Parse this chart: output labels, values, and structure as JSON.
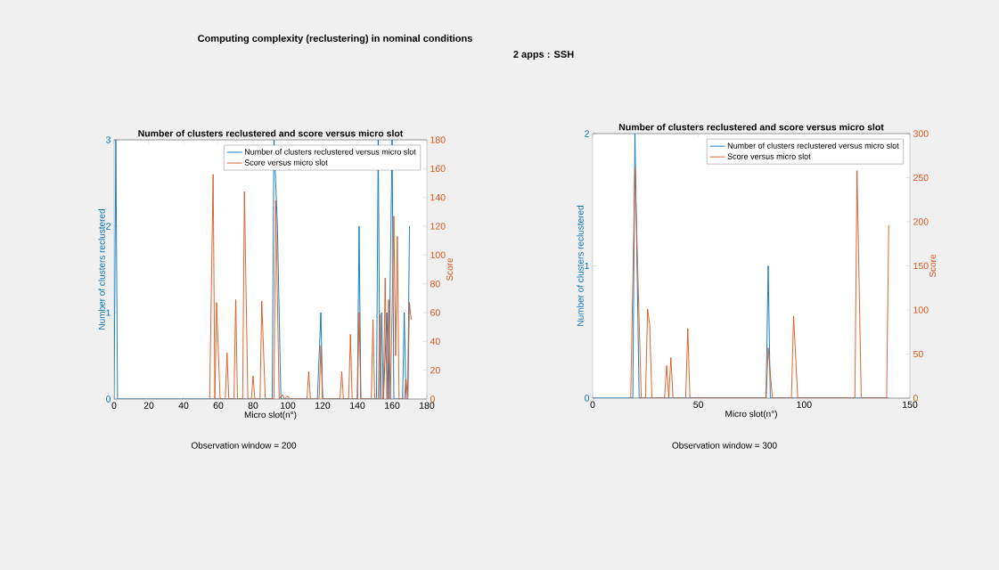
{
  "chart_data": [
    {
      "type": "line",
      "title": "Number of clusters reclustered and score versus micro slot",
      "xlabel": "Micro slot(n°)",
      "ylabel": "Number of clusters reclustered",
      "y2label": "Score",
      "annotations": [
        "Computing complexity (reclustering) in nominal conditions",
        "2 apps : SSH",
        "Observation window = 200"
      ],
      "xlim": [
        0,
        180
      ],
      "xticks": [
        0,
        20,
        40,
        60,
        80,
        100,
        120,
        140,
        160,
        180
      ],
      "ylim": [
        0,
        3
      ],
      "yticks": [
        0,
        1,
        2,
        3
      ],
      "y2lim": [
        0,
        180
      ],
      "y2ticks": [
        0,
        20,
        40,
        60,
        80,
        100,
        120,
        140,
        160,
        180
      ],
      "legend": "top right",
      "series": [
        {
          "name": "Number of clusters reclustered versus micro slot",
          "color": "#0072bd",
          "x": [
            0,
            1,
            2,
            91,
            92,
            94,
            96,
            117,
            119,
            120,
            140,
            141,
            142,
            151,
            152,
            153,
            154,
            155,
            157,
            158,
            160,
            161,
            166,
            167,
            168,
            169,
            170
          ],
          "values": [
            0,
            3,
            0,
            0,
            3,
            2,
            0,
            0,
            1,
            0,
            0,
            2,
            0,
            0,
            3,
            0,
            1,
            0,
            1,
            0,
            3,
            0,
            0,
            1,
            0,
            0,
            2
          ]
        },
        {
          "name": "Score versus micro slot",
          "color": "#d95319",
          "axis": "y2",
          "x": [
            55,
            57,
            58,
            59,
            61,
            64,
            65,
            66,
            69,
            70,
            71,
            74,
            75,
            77,
            79,
            80,
            81,
            84,
            85,
            87,
            92,
            93,
            95,
            97,
            98,
            100,
            101,
            111,
            112,
            113,
            118,
            119,
            120,
            130,
            131,
            132,
            135,
            136,
            137,
            140,
            141,
            142,
            148,
            149,
            150,
            152,
            153,
            154,
            155,
            156,
            157,
            158,
            159,
            161,
            162,
            163,
            164,
            167,
            168,
            169,
            170,
            171
          ],
          "values": [
            0,
            156,
            0,
            67,
            0,
            0,
            32,
            0,
            0,
            69,
            0,
            0,
            144,
            0,
            0,
            16,
            0,
            0,
            68,
            0,
            0,
            138,
            0,
            3,
            0,
            2,
            0,
            0,
            19,
            0,
            0,
            37,
            0,
            0,
            19,
            0,
            0,
            45,
            0,
            0,
            60,
            0,
            0,
            55,
            0,
            0,
            59,
            0,
            0,
            84,
            0,
            69,
            0,
            127,
            30,
            113,
            0,
            0,
            14,
            0,
            67,
            55
          ]
        }
      ]
    },
    {
      "type": "line",
      "title": "Number of clusters reclustered and score versus micro slot",
      "xlabel": "Micro slot(n°)",
      "ylabel": "Number of clusters reclustered",
      "y2label": "Score",
      "annotations": [
        "Observation window = 300"
      ],
      "xlim": [
        0,
        150
      ],
      "xticks": [
        0,
        50,
        100,
        150
      ],
      "ylim": [
        0,
        2
      ],
      "yticks": [
        0,
        1,
        2
      ],
      "y2lim": [
        0,
        300
      ],
      "y2ticks": [
        0,
        50,
        100,
        150,
        200,
        250,
        300
      ],
      "legend": "top right",
      "series": [
        {
          "name": "Number of clusters reclustered versus micro slot",
          "color": "#0072bd",
          "x": [
            0,
            19,
            20,
            22,
            82,
            83,
            84,
            140
          ],
          "values": [
            0,
            0,
            2,
            0,
            0,
            1,
            0,
            0
          ]
        },
        {
          "name": "Score versus micro slot",
          "color": "#d95319",
          "axis": "y2",
          "x": [
            18,
            20,
            23,
            25,
            26,
            27,
            28,
            34,
            35,
            36,
            37,
            38,
            44,
            45,
            46,
            82,
            83,
            85,
            94,
            95,
            97,
            124,
            125,
            127,
            139,
            140
          ],
          "values": [
            0,
            261,
            0,
            0,
            101,
            83,
            0,
            0,
            37,
            0,
            46,
            0,
            0,
            79,
            0,
            0,
            57,
            0,
            0,
            93,
            0,
            0,
            258,
            0,
            0,
            196
          ]
        }
      ]
    }
  ]
}
